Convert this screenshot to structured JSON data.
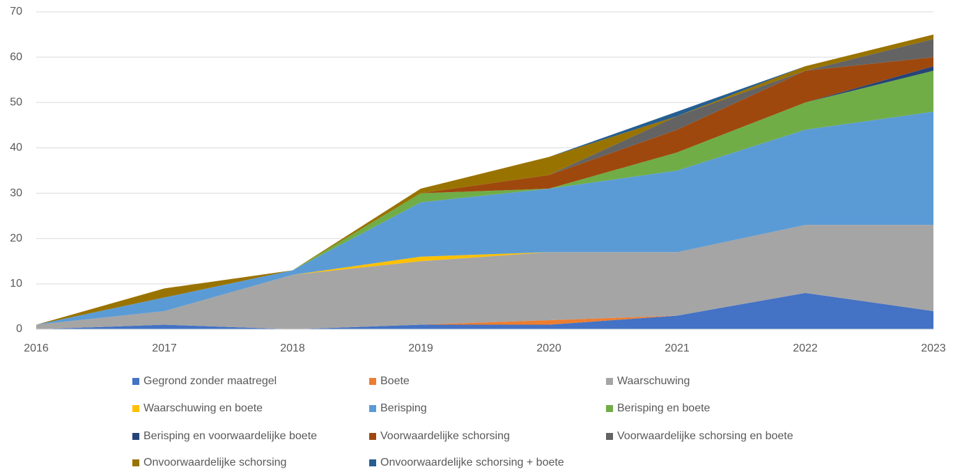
{
  "chart_data": {
    "type": "stacked_area",
    "categories": [
      "2016",
      "2017",
      "2018",
      "2019",
      "2020",
      "2021",
      "2022",
      "2023"
    ],
    "ylim": [
      0,
      70
    ],
    "yticks": [
      0,
      10,
      20,
      30,
      40,
      50,
      60,
      70
    ],
    "grid": true,
    "legend": "bottom",
    "series": [
      {
        "name": "Gegrond zonder maatregel",
        "color": "#4472c4",
        "values": [
          0,
          1,
          0,
          1,
          1,
          3,
          8,
          4
        ]
      },
      {
        "name": "Boete",
        "color": "#ed7d31",
        "values": [
          0,
          0,
          0,
          0,
          1,
          0,
          0,
          0
        ]
      },
      {
        "name": "Waarschuwing",
        "color": "#a5a5a5",
        "values": [
          1,
          3,
          12,
          14,
          15,
          14,
          15,
          19
        ]
      },
      {
        "name": "Waarschuwing en boete",
        "color": "#ffc000",
        "values": [
          0,
          0,
          0,
          1,
          0,
          0,
          0,
          0
        ]
      },
      {
        "name": "Berisping",
        "color": "#5b9bd5",
        "values": [
          0,
          3,
          1,
          12,
          14,
          18,
          21,
          25
        ]
      },
      {
        "name": "Berisping en boete",
        "color": "#70ad47",
        "values": [
          0,
          0,
          0,
          2,
          0,
          4,
          6,
          9
        ]
      },
      {
        "name": "Berisping en voorwaardelijke boete",
        "color": "#264478",
        "values": [
          0,
          0,
          0,
          0,
          0,
          0,
          0,
          1
        ]
      },
      {
        "name": "Voorwaardelijke schorsing",
        "color": "#9e480e",
        "values": [
          0,
          0,
          0,
          0,
          3,
          5,
          7,
          2
        ]
      },
      {
        "name": "Voorwaardelijke schorsing en boete",
        "color": "#636363",
        "values": [
          0,
          0,
          0,
          0,
          0,
          3,
          0,
          4
        ]
      },
      {
        "name": "Onvoorwaardelijke schorsing",
        "color": "#997300",
        "values": [
          0,
          2,
          0,
          1,
          4,
          0,
          1,
          1
        ]
      },
      {
        "name": "Onvoorwaardelijke schorsing + boete",
        "color": "#255e91",
        "values": [
          0,
          0,
          0,
          0,
          0,
          1,
          0,
          0
        ]
      }
    ]
  }
}
